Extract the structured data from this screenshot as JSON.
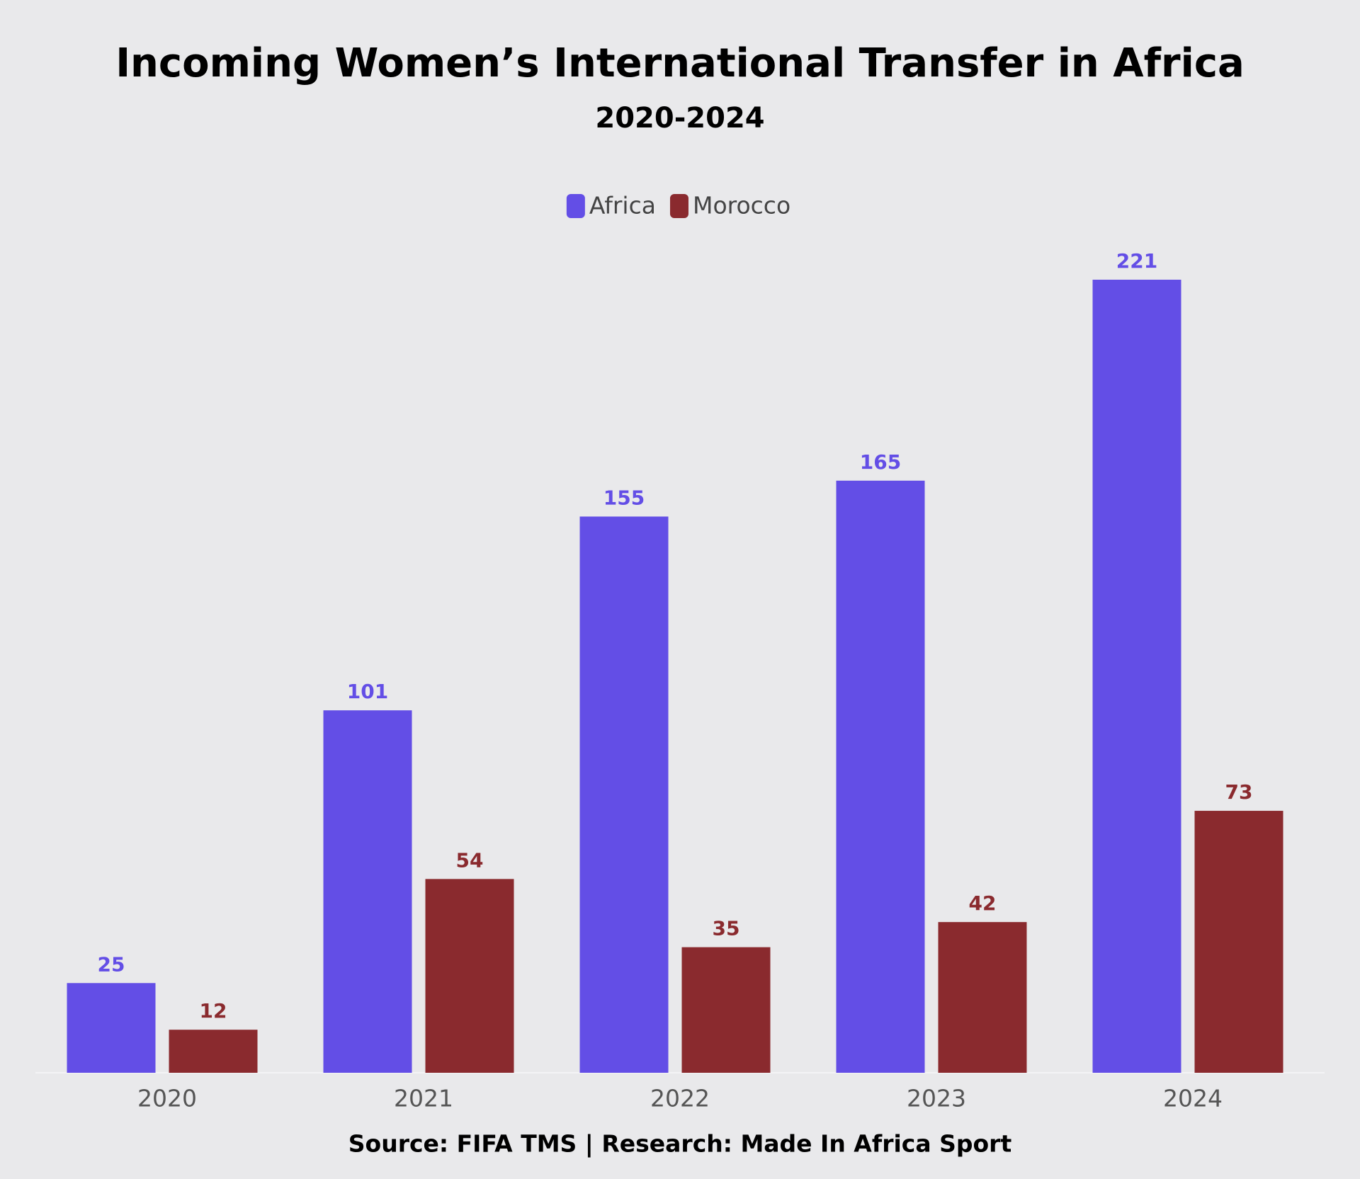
{
  "chart_data": {
    "type": "bar",
    "title": "Incoming Women’s International Transfer in Africa",
    "subtitle": "2020-2024",
    "categories": [
      "2020",
      "2021",
      "2022",
      "2023",
      "2024"
    ],
    "series": [
      {
        "name": "Africa",
        "color": "#634ee6",
        "values": [
          25,
          101,
          155,
          165,
          221
        ]
      },
      {
        "name": "Morocco",
        "color": "#8a2a2e",
        "values": [
          12,
          54,
          35,
          42,
          73
        ]
      }
    ],
    "source": "Source: FIFA TMS | Research: Made In Africa Sport"
  }
}
